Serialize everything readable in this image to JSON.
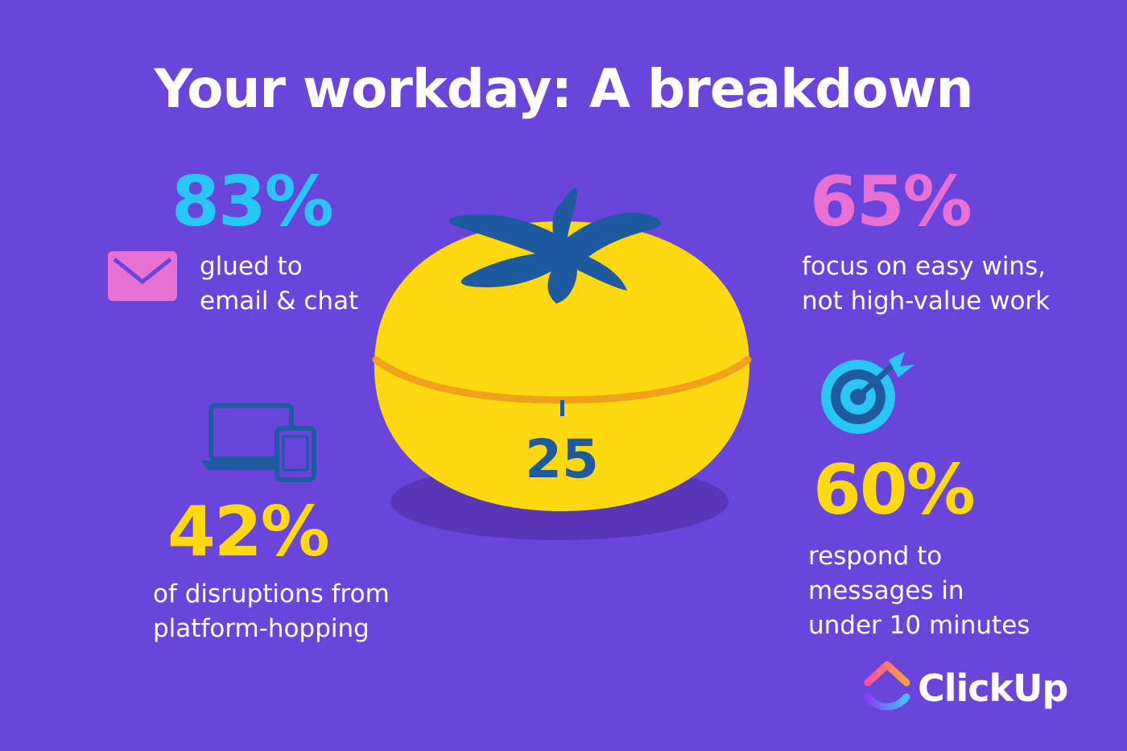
{
  "title": "Your workday: A breakdown",
  "colors": {
    "background": "#6a45dc",
    "stat_blue": "#27c6f5",
    "stat_pink": "#e770d4",
    "stat_yellow": "#ffd90f",
    "tomato_body": "#ffd90f",
    "tomato_leaf": "#1d5aa0"
  },
  "stats": {
    "email_chat": {
      "value": "83%",
      "caption_line1": "glued to",
      "caption_line2": "email & chat",
      "icon": "envelope-icon"
    },
    "easy_wins": {
      "value": "65%",
      "caption_line1": "focus on easy wins,",
      "caption_line2": "not high-value work"
    },
    "platform_hopping": {
      "value": "42%",
      "caption_line1": "of disruptions from",
      "caption_line2": "platform-hopping",
      "icon": "laptop-and-phone-icon"
    },
    "quick_response": {
      "value": "60%",
      "caption_line1": "respond to",
      "caption_line2": "messages in",
      "caption_line3": "under 10 minutes",
      "icon": "target-icon"
    }
  },
  "timer": {
    "value": "25",
    "icon": "pomodoro-tomato-timer"
  },
  "brand": {
    "name": "ClickUp",
    "icon": "clickup-logo-icon"
  }
}
